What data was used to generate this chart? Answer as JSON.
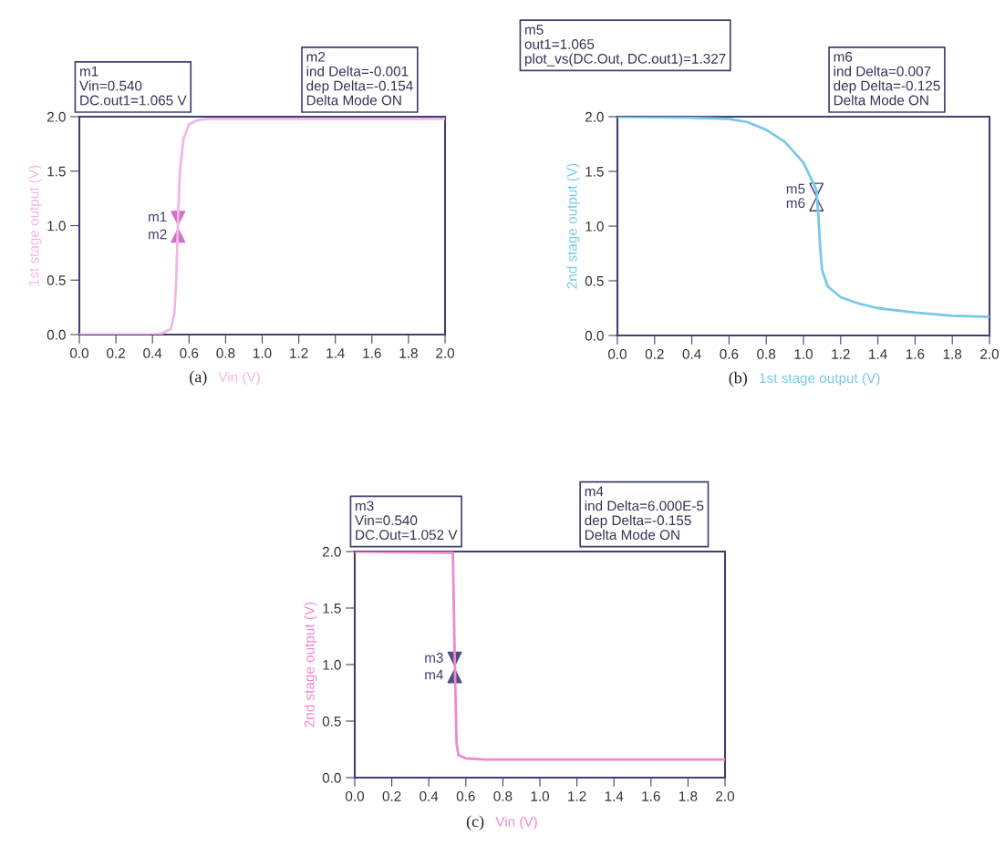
{
  "chart_data": [
    {
      "type": "line",
      "xlabel": "Vin (V)",
      "ylabel": "1st stage output (V)",
      "annotations": [
        "(a)",
        "m1\nVin=0.540\nDC.out1=1.065 V",
        "m2\nind Delta=-0.001\ndep Delta=-0.154\nDelta Mode ON"
      ],
      "xlim": [
        0,
        2
      ],
      "ylim": [
        0,
        2
      ],
      "xticks": [
        {
          "value": 0,
          "label": "0.0"
        },
        {
          "value": 0.2,
          "label": "0.2"
        },
        {
          "value": 0.4,
          "label": "0.4"
        },
        {
          "value": 0.6,
          "label": "0.6"
        },
        {
          "value": 0.8,
          "label": "0.8"
        },
        {
          "value": 1.0,
          "label": "1.0"
        },
        {
          "value": 1.2,
          "label": "1.2"
        },
        {
          "value": 1.4,
          "label": "1.4"
        },
        {
          "value": 1.6,
          "label": "1.6"
        },
        {
          "value": 1.8,
          "label": "1.8"
        },
        {
          "value": 2.0,
          "label": "2.0"
        }
      ],
      "yticks": [
        {
          "value": 0,
          "label": "0.0"
        },
        {
          "value": 0.5,
          "label": "0.5"
        },
        {
          "value": 1.0,
          "label": "1.0"
        },
        {
          "value": 1.5,
          "label": "1.5"
        },
        {
          "value": 2.0,
          "label": "2.0"
        }
      ],
      "grid": false,
      "legend": false,
      "series": [
        {
          "color": "#f2b6e6",
          "x": [
            0,
            0.2,
            0.4,
            0.45,
            0.5,
            0.52,
            0.53,
            0.54,
            0.55,
            0.57,
            0.6,
            0.65,
            0.7,
            2.0
          ],
          "values": [
            0,
            0,
            0,
            0.01,
            0.05,
            0.2,
            0.5,
            1.07,
            1.5,
            1.8,
            1.93,
            1.97,
            1.98,
            1.98
          ]
        },
        {
          "type": "scatter",
          "name": "m1",
          "color": "#d070c8",
          "marker": "triangle",
          "x": [
            0.54
          ],
          "values": [
            1.07
          ]
        },
        {
          "type": "scatter",
          "name": "m2",
          "color": "#d070c8",
          "marker": "triangle",
          "x": [
            0.54
          ],
          "values": [
            0.91
          ]
        }
      ]
    },
    {
      "type": "line",
      "xlabel": "1st stage output (V)",
      "ylabel": "2nd stage output (V)",
      "annotations": [
        "(b)",
        "m5\nout1=1.065\nplot_vs(DC.Out, DC.out1)=1.327",
        "m6\nind Delta=0.007\ndep Delta=-0.125\nDelta Mode ON"
      ],
      "xlim": [
        0,
        2
      ],
      "ylim": [
        0,
        2
      ],
      "xticks": [
        {
          "value": 0,
          "label": "0.0"
        },
        {
          "value": 0.2,
          "label": "0.2"
        },
        {
          "value": 0.4,
          "label": "0.4"
        },
        {
          "value": 0.6,
          "label": "0.6"
        },
        {
          "value": 0.8,
          "label": "0.8"
        },
        {
          "value": 1.0,
          "label": "1.0"
        },
        {
          "value": 1.2,
          "label": "1.2"
        },
        {
          "value": 1.4,
          "label": "1.4"
        },
        {
          "value": 1.6,
          "label": "1.6"
        },
        {
          "value": 1.8,
          "label": "1.8"
        },
        {
          "value": 2.0,
          "label": "2.0"
        }
      ],
      "yticks": [
        {
          "value": 0,
          "label": "0.0"
        },
        {
          "value": 0.5,
          "label": "0.5"
        },
        {
          "value": 1.0,
          "label": "1.0"
        },
        {
          "value": 1.5,
          "label": "1.5"
        },
        {
          "value": 2.0,
          "label": "2.0"
        }
      ],
      "grid": false,
      "legend": false,
      "series": [
        {
          "color": "#78c8e8",
          "x": [
            0,
            0.4,
            0.6,
            0.7,
            0.8,
            0.9,
            1.0,
            1.07,
            1.08,
            1.09,
            1.1,
            1.13,
            1.2,
            1.3,
            1.4,
            1.6,
            1.8,
            2.0
          ],
          "values": [
            2.0,
            1.99,
            1.98,
            1.95,
            1.88,
            1.77,
            1.58,
            1.33,
            1.1,
            0.8,
            0.6,
            0.45,
            0.35,
            0.29,
            0.25,
            0.21,
            0.18,
            0.17
          ]
        },
        {
          "type": "scatter",
          "name": "m5",
          "color": "#ffffff",
          "marker": "triangle",
          "x": [
            1.07
          ],
          "values": [
            1.33
          ]
        },
        {
          "type": "scatter",
          "name": "m6",
          "color": "#ffffff",
          "marker": "triangle",
          "x": [
            1.07
          ],
          "values": [
            1.2
          ]
        }
      ]
    },
    {
      "type": "line",
      "xlabel": "Vin (V)",
      "ylabel": "2nd stage output (V)",
      "annotations": [
        "(c)",
        "m3\nVin=0.540\nDC.Out=1.052 V",
        "m4\nind Delta=6.000E-5\ndep Delta=-0.155\nDelta Mode ON"
      ],
      "xlim": [
        0,
        2
      ],
      "ylim": [
        0,
        2
      ],
      "xticks": [
        {
          "value": 0,
          "label": "0.0"
        },
        {
          "value": 0.2,
          "label": "0.2"
        },
        {
          "value": 0.4,
          "label": "0.4"
        },
        {
          "value": 0.6,
          "label": "0.6"
        },
        {
          "value": 0.8,
          "label": "0.8"
        },
        {
          "value": 1.0,
          "label": "1.0"
        },
        {
          "value": 1.2,
          "label": "1.2"
        },
        {
          "value": 1.4,
          "label": "1.4"
        },
        {
          "value": 1.6,
          "label": "1.6"
        },
        {
          "value": 1.8,
          "label": "1.8"
        },
        {
          "value": 2.0,
          "label": "2.0"
        }
      ],
      "yticks": [
        {
          "value": 0,
          "label": "0.0"
        },
        {
          "value": 0.5,
          "label": "0.5"
        },
        {
          "value": 1.0,
          "label": "1.0"
        },
        {
          "value": 1.5,
          "label": "1.5"
        },
        {
          "value": 2.0,
          "label": "2.0"
        }
      ],
      "grid": false,
      "legend": false,
      "series": [
        {
          "color": "#f088cc",
          "x": [
            0,
            0.53,
            0.54,
            0.55,
            0.56,
            0.6,
            0.7,
            2.0
          ],
          "values": [
            2.0,
            1.99,
            1.05,
            0.3,
            0.2,
            0.17,
            0.16,
            0.16
          ]
        },
        {
          "type": "scatter",
          "name": "m3",
          "color": "#505080",
          "marker": "triangle",
          "x": [
            0.54
          ],
          "values": [
            1.05
          ]
        },
        {
          "type": "scatter",
          "name": "m4",
          "color": "#505080",
          "marker": "triangle",
          "x": [
            0.54
          ],
          "values": [
            0.9
          ]
        }
      ]
    }
  ]
}
